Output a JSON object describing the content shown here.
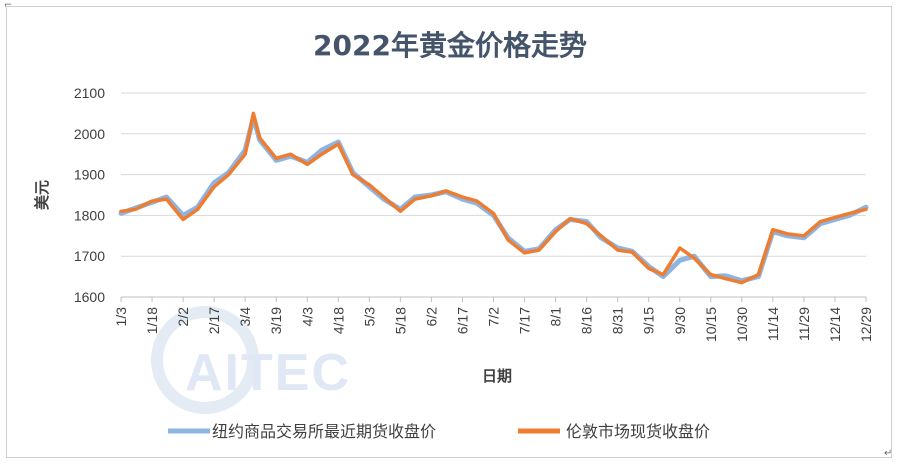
{
  "chart_data": {
    "type": "line",
    "title": "2022年黄金价格走势",
    "xlabel": "日期",
    "ylabel": "美元",
    "ylim": [
      1600,
      2100
    ],
    "yticks": [
      1600,
      1700,
      1800,
      1900,
      2000,
      2100
    ],
    "grid": true,
    "legend_position": "bottom",
    "watermark": "AITEC",
    "corner_marks": [
      "⌐",
      "↵"
    ],
    "xticks": [
      "1/3",
      "1/18",
      "2/2",
      "2/17",
      "3/4",
      "3/19",
      "4/3",
      "4/18",
      "5/3",
      "5/18",
      "6/2",
      "6/17",
      "7/2",
      "7/17",
      "8/1",
      "8/16",
      "8/31",
      "9/15",
      "9/30",
      "10/15",
      "10/30",
      "11/14",
      "11/29",
      "12/14",
      "12/29"
    ],
    "series": [
      {
        "name": "纽约商品交易所最近期货收盘价",
        "color": "#8db4e2",
        "x": [
          "1/3",
          "1/10",
          "1/18",
          "1/25",
          "2/2",
          "2/9",
          "2/17",
          "2/24",
          "3/4",
          "3/8",
          "3/11",
          "3/19",
          "3/26",
          "4/3",
          "4/10",
          "4/18",
          "4/25",
          "5/3",
          "5/10",
          "5/18",
          "5/25",
          "6/2",
          "6/9",
          "6/17",
          "6/24",
          "7/2",
          "7/9",
          "7/17",
          "7/24",
          "8/1",
          "8/8",
          "8/16",
          "8/23",
          "8/31",
          "9/7",
          "9/15",
          "9/22",
          "9/30",
          "10/7",
          "10/15",
          "10/22",
          "10/30",
          "11/7",
          "11/14",
          "11/21",
          "11/29",
          "12/7",
          "12/14",
          "12/21",
          "12/29"
        ],
        "values": [
          1805,
          1818,
          1832,
          1845,
          1800,
          1820,
          1880,
          1905,
          1960,
          2040,
          1985,
          1935,
          1945,
          1930,
          1960,
          1980,
          1905,
          1870,
          1840,
          1815,
          1845,
          1850,
          1858,
          1840,
          1830,
          1800,
          1745,
          1712,
          1718,
          1765,
          1790,
          1785,
          1745,
          1720,
          1712,
          1675,
          1650,
          1690,
          1700,
          1650,
          1652,
          1640,
          1650,
          1760,
          1750,
          1745,
          1780,
          1790,
          1800,
          1820
        ]
      },
      {
        "name": "伦敦市场现货收盘价",
        "color": "#ed7d31",
        "x": [
          "1/3",
          "1/10",
          "1/18",
          "1/25",
          "2/2",
          "2/9",
          "2/17",
          "2/24",
          "3/4",
          "3/8",
          "3/11",
          "3/19",
          "3/26",
          "4/3",
          "4/10",
          "4/18",
          "4/25",
          "5/3",
          "5/10",
          "5/18",
          "5/25",
          "6/2",
          "6/9",
          "6/17",
          "6/24",
          "7/2",
          "7/9",
          "7/17",
          "7/24",
          "8/1",
          "8/8",
          "8/16",
          "8/23",
          "8/31",
          "9/7",
          "9/15",
          "9/22",
          "9/30",
          "10/7",
          "10/15",
          "10/22",
          "10/30",
          "11/7",
          "11/14",
          "11/21",
          "11/29",
          "12/7",
          "12/14",
          "12/21",
          "12/29"
        ],
        "values": [
          1810,
          1815,
          1835,
          1840,
          1790,
          1815,
          1870,
          1900,
          1950,
          2050,
          1990,
          1940,
          1950,
          1925,
          1950,
          1975,
          1900,
          1875,
          1845,
          1810,
          1840,
          1848,
          1860,
          1845,
          1835,
          1805,
          1740,
          1708,
          1715,
          1760,
          1792,
          1780,
          1750,
          1715,
          1710,
          1670,
          1655,
          1720,
          1695,
          1655,
          1645,
          1635,
          1655,
          1765,
          1755,
          1750,
          1785,
          1795,
          1805,
          1815
        ]
      }
    ]
  }
}
